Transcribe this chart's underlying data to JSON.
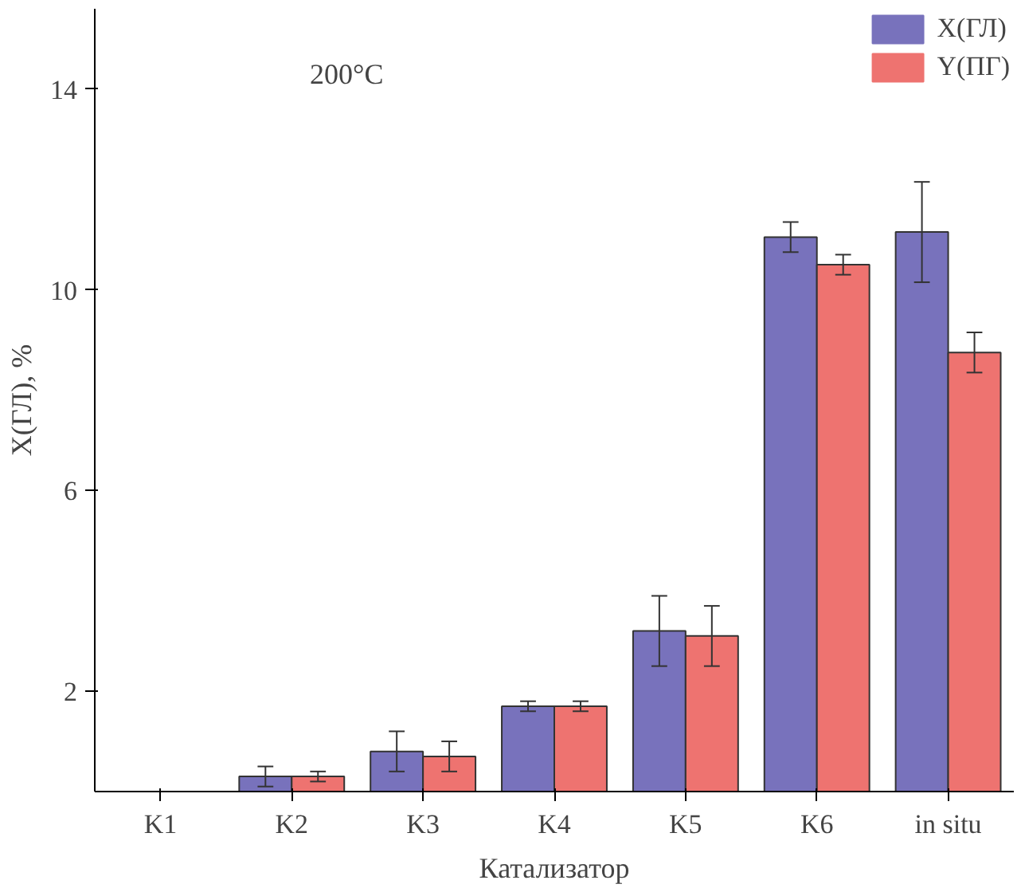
{
  "chart_data": {
    "type": "bar",
    "xlabel": "Катализатор",
    "ylabel": "X(ГЛ), %",
    "categories": [
      "K1",
      "K2",
      "K3",
      "K4",
      "K5",
      "K6",
      "in situ"
    ],
    "series": [
      {
        "name": "X(ГЛ)",
        "color": "#7872bc",
        "values": [
          0,
          0.3,
          0.8,
          1.7,
          3.2,
          11.05,
          11.15
        ],
        "errors": [
          null,
          0.2,
          0.4,
          0.1,
          0.7,
          0.3,
          1.0
        ]
      },
      {
        "name": "Y(ПГ)",
        "color": "#ee7370",
        "values": [
          0,
          0.3,
          0.7,
          1.7,
          3.1,
          10.5,
          8.75
        ],
        "errors": [
          null,
          0.1,
          0.3,
          0.1,
          0.6,
          0.2,
          0.4
        ]
      }
    ],
    "ylim": [
      0,
      15.6
    ],
    "yticks": [
      2,
      6,
      10,
      14
    ],
    "grid": false,
    "legend": "top right",
    "annotations": [
      "200°C"
    ]
  }
}
